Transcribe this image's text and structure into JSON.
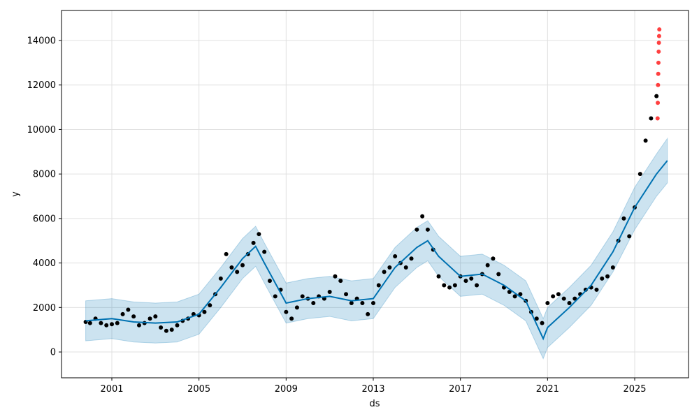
{
  "chart_data": {
    "type": "forecast",
    "xlabel": "ds",
    "ylabel": "y",
    "xlim": [
      1998.69,
      2027.47
    ],
    "ylim": [
      -1160,
      15350
    ],
    "xticks": [
      2001,
      2005,
      2009,
      2013,
      2017,
      2021,
      2025
    ],
    "yticks": [
      0,
      2000,
      4000,
      6000,
      8000,
      10000,
      12000,
      14000
    ],
    "grid": true,
    "actual": {
      "color": "#000000",
      "x": [
        1999.8,
        2000,
        2000.25,
        2000.5,
        2000.75,
        2001,
        2001.25,
        2001.5,
        2001.75,
        2002,
        2002.25,
        2002.5,
        2002.75,
        2003,
        2003.25,
        2003.5,
        2003.75,
        2004,
        2004.25,
        2004.5,
        2004.75,
        2005,
        2005.25,
        2005.5,
        2005.75,
        2006,
        2006.25,
        2006.5,
        2006.75,
        2007,
        2007.25,
        2007.5,
        2007.75,
        2008,
        2008.25,
        2008.5,
        2008.75,
        2009,
        2009.25,
        2009.5,
        2009.75,
        2010,
        2010.25,
        2010.5,
        2010.75,
        2011,
        2011.25,
        2011.5,
        2011.75,
        2012,
        2012.25,
        2012.5,
        2012.75,
        2013,
        2013.25,
        2013.5,
        2013.75,
        2014,
        2014.25,
        2014.5,
        2014.75,
        2015,
        2015.25,
        2015.5,
        2015.75,
        2016,
        2016.25,
        2016.5,
        2016.75,
        2017,
        2017.25,
        2017.5,
        2017.75,
        2018,
        2018.25,
        2018.5,
        2018.75,
        2019,
        2019.25,
        2019.5,
        2019.75,
        2020,
        2020.25,
        2020.5,
        2020.75,
        2021,
        2021.25,
        2021.5,
        2021.75,
        2022,
        2022.25,
        2022.5,
        2022.75,
        2023,
        2023.25,
        2023.5,
        2023.75,
        2024,
        2024.25,
        2024.5,
        2024.75,
        2025,
        2025.25,
        2025.5,
        2025.75,
        2026
      ],
      "values": [
        1350,
        1300,
        1500,
        1300,
        1200,
        1250,
        1300,
        1700,
        1900,
        1600,
        1200,
        1300,
        1500,
        1600,
        1100,
        950,
        1000,
        1200,
        1400,
        1500,
        1700,
        1650,
        1800,
        2100,
        2600,
        3300,
        4400,
        3800,
        3600,
        3900,
        4400,
        4900,
        5300,
        4500,
        3200,
        2500,
        2800,
        1800,
        1500,
        2000,
        2500,
        2400,
        2200,
        2500,
        2400,
        2700,
        3400,
        3200,
        2600,
        2200,
        2400,
        2200,
        1700,
        2200,
        3000,
        3600,
        3800,
        4300,
        4000,
        3800,
        4200,
        5500,
        6100,
        5500,
        4600,
        3400,
        3000,
        2900,
        3000,
        3400,
        3200,
        3300,
        3000,
        3500,
        3900,
        4200,
        3500,
        2900,
        2700,
        2500,
        2600,
        2300,
        1800,
        1500,
        1300,
        2200,
        2500,
        2600,
        2400,
        2200,
        2400,
        2600,
        2800,
        2900,
        2800,
        3300,
        3400,
        3800,
        5000,
        6000,
        5200,
        6500,
        8000,
        9500,
        10500,
        11500
      ]
    },
    "holdout": {
      "color": "#ff0000",
      "x": [
        2026.05,
        2026.06,
        2026.07,
        2026.08,
        2026.09,
        2026.1,
        2026.11,
        2026.12,
        2026.13
      ],
      "values": [
        10500,
        11200,
        12000,
        12500,
        13000,
        13500,
        13900,
        14200,
        14500
      ]
    },
    "forecast": {
      "color": "#0072B2",
      "x": [
        1999.8,
        2001,
        2002,
        2003,
        2004,
        2005,
        2006,
        2007,
        2007.6,
        2008,
        2009,
        2010,
        2011,
        2012,
        2013,
        2014,
        2015,
        2015.5,
        2016,
        2017,
        2018,
        2019,
        2020,
        2020.8,
        2021,
        2022,
        2023,
        2024,
        2025,
        2026,
        2026.5
      ],
      "values": [
        1400,
        1500,
        1350,
        1300,
        1350,
        1700,
        2900,
        4200,
        4750,
        4000,
        2200,
        2400,
        2500,
        2300,
        2400,
        3800,
        4700,
        5000,
        4300,
        3400,
        3500,
        3000,
        2300,
        600,
        1100,
        2000,
        3000,
        4500,
        6500,
        8000,
        8600
      ],
      "lower": [
        500,
        600,
        450,
        400,
        450,
        800,
        2000,
        3300,
        3850,
        3100,
        1300,
        1500,
        1600,
        1400,
        1500,
        2900,
        3800,
        4100,
        3400,
        2500,
        2600,
        2100,
        1400,
        -300,
        200,
        1100,
        2100,
        3600,
        5500,
        7000,
        7600
      ],
      "upper": [
        2300,
        2400,
        2250,
        2200,
        2250,
        2600,
        3800,
        5100,
        5650,
        4900,
        3100,
        3300,
        3400,
        3200,
        3300,
        4700,
        5600,
        5900,
        5200,
        4300,
        4400,
        3900,
        3200,
        1500,
        2000,
        2900,
        3900,
        5400,
        7400,
        8900,
        9600
      ]
    }
  }
}
